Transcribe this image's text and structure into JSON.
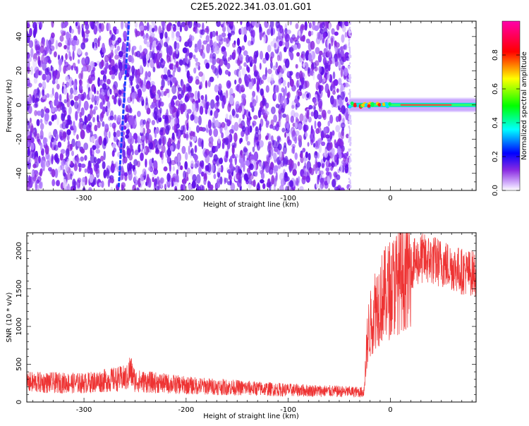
{
  "title": "C2E5.2022.341.03.01.G01",
  "chart_data": [
    {
      "type": "heatmap",
      "xlabel": "Height of straight line (km)",
      "ylabel": "Frequency (Hz)",
      "xlim": [
        -356,
        84
      ],
      "ylim": [
        -50,
        49
      ],
      "x_ticks": [
        -300,
        -200,
        -100,
        0
      ],
      "y_ticks": [
        -40,
        -20,
        0,
        20,
        40
      ],
      "noise_region_x": [
        -356,
        -40
      ],
      "doppler_line": {
        "x": [
          -266,
          -256
        ],
        "y": [
          -48,
          49
        ]
      },
      "carrier_band": {
        "x": [
          -40,
          84
        ],
        "y": [
          -3,
          3
        ]
      },
      "colorbar": {
        "label": "Normalized spectral amplitude",
        "range": [
          0,
          1
        ],
        "ticks": [
          0.0,
          0.2,
          0.4,
          0.6,
          0.8
        ],
        "colors": [
          "#ffffff",
          "#8a2be2",
          "#0000ff",
          "#00ffff",
          "#00ff00",
          "#ffff00",
          "#ff0000",
          "#ff00ff"
        ]
      }
    },
    {
      "type": "line",
      "xlabel": "Height of straight line (km)",
      "ylabel": "SNR (10 * v/v)",
      "xlim": [
        -356,
        84
      ],
      "ylim": [
        0,
        2240
      ],
      "x_ticks": [
        -300,
        -200,
        -100,
        0
      ],
      "y_ticks": [
        0,
        500,
        1000,
        1500,
        2000
      ],
      "color": "#ee3333",
      "profile": [
        [
          -356,
          260
        ],
        [
          -300,
          250
        ],
        [
          -257,
          320
        ],
        [
          -255,
          430
        ],
        [
          -250,
          280
        ],
        [
          -200,
          220
        ],
        [
          -150,
          190
        ],
        [
          -100,
          160
        ],
        [
          -50,
          140
        ],
        [
          -26,
          130
        ],
        [
          -22,
          900
        ],
        [
          -15,
          1250
        ],
        [
          -10,
          1350
        ],
        [
          0,
          1500
        ],
        [
          10,
          1650
        ],
        [
          20,
          1800
        ],
        [
          30,
          1900
        ],
        [
          40,
          1880
        ],
        [
          50,
          1840
        ],
        [
          60,
          1790
        ],
        [
          70,
          1730
        ],
        [
          84,
          1700
        ]
      ]
    }
  ]
}
